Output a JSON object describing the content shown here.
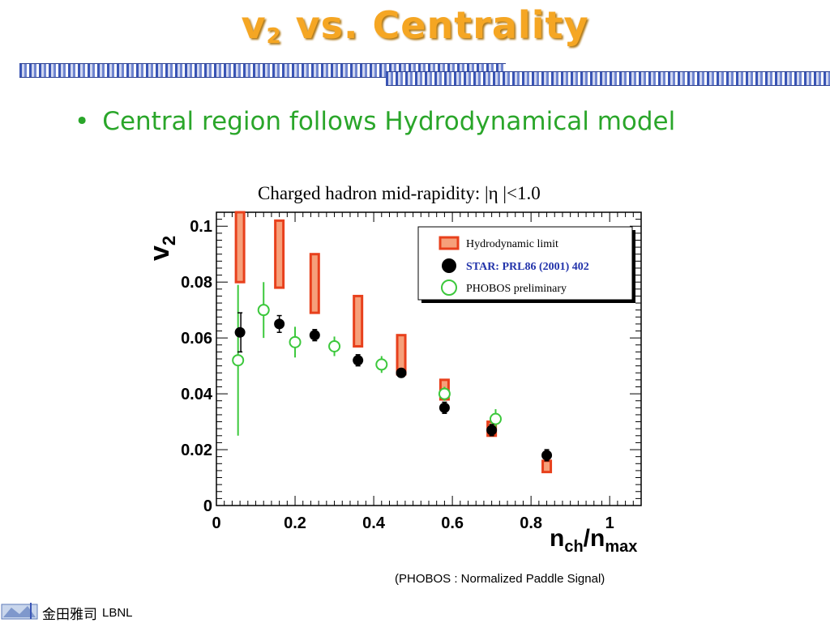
{
  "slide": {
    "title_main": "v",
    "title_sub": "2",
    "title_rest": " vs. Centrality",
    "bullet_mark": "•",
    "bullet_text": "Central region follows Hydrodynamical model",
    "caption": "(PHOBOS : Normalized Paddle Signal)",
    "footer_chinese": "金田雅司",
    "footer_lbnl": "LBNL",
    "colors": {
      "title": "#f5a623",
      "bullet": "#2aa62a",
      "hydro_edge": "#e8401c",
      "hydro_fill": "#f6a07a",
      "star": "#000000",
      "phobos": "#3cc83c",
      "legend_star_text": "#2233aa"
    }
  },
  "chart_data": {
    "type": "scatter",
    "title": "Charged hadron   mid-rapidity: |η |<1.0",
    "ylabel_main": "v",
    "ylabel_sub": "2",
    "xlabel_main": "n",
    "xlabel_sub1": "ch",
    "xlabel_mid": "/n",
    "xlabel_sub2": "max",
    "xlim": [
      0,
      1.08
    ],
    "ylim": [
      0,
      0.105
    ],
    "x_ticks": [
      {
        "value": 0,
        "label": "0"
      },
      {
        "value": 0.2,
        "label": "0.2"
      },
      {
        "value": 0.4,
        "label": "0.4"
      },
      {
        "value": 0.6,
        "label": "0.6"
      },
      {
        "value": 0.8,
        "label": "0.8"
      },
      {
        "value": 1.0,
        "label": "1"
      }
    ],
    "y_ticks": [
      {
        "value": 0,
        "label": "0"
      },
      {
        "value": 0.02,
        "label": "0.02"
      },
      {
        "value": 0.04,
        "label": "0.04"
      },
      {
        "value": 0.06,
        "label": "0.06"
      },
      {
        "value": 0.08,
        "label": "0.08"
      },
      {
        "value": 0.1,
        "label": "0.1"
      }
    ],
    "legend": {
      "placement": "top-right",
      "entries": [
        {
          "label": "Hydrodynamic limit",
          "marker": "box"
        },
        {
          "label": "STAR: PRL86 (2001) 402",
          "marker": "filled-circle"
        },
        {
          "label": "PHOBOS preliminary",
          "marker": "open-circle"
        }
      ]
    },
    "series": [
      {
        "name": "Hydrodynamic limit",
        "marker": "box",
        "points": [
          {
            "x": 0.06,
            "low": 0.08,
            "high": 0.105
          },
          {
            "x": 0.16,
            "low": 0.078,
            "high": 0.102
          },
          {
            "x": 0.25,
            "low": 0.069,
            "high": 0.09
          },
          {
            "x": 0.36,
            "low": 0.057,
            "high": 0.075
          },
          {
            "x": 0.47,
            "low": 0.047,
            "high": 0.061
          },
          {
            "x": 0.58,
            "low": 0.038,
            "high": 0.045
          },
          {
            "x": 0.7,
            "low": 0.025,
            "high": 0.03
          },
          {
            "x": 0.84,
            "low": 0.012,
            "high": 0.016
          }
        ]
      },
      {
        "name": "STAR: PRL86 (2001) 402",
        "marker": "filled-circle",
        "points": [
          {
            "x": 0.06,
            "y": 0.062,
            "err": 0.0
          },
          {
            "x": 0.16,
            "y": 0.065,
            "err": 0.003
          },
          {
            "x": 0.25,
            "y": 0.061,
            "err": 0.002
          },
          {
            "x": 0.36,
            "y": 0.052,
            "err": 0.002
          },
          {
            "x": 0.47,
            "y": 0.0475,
            "err": 0.0015
          },
          {
            "x": 0.58,
            "y": 0.035,
            "err": 0.002
          },
          {
            "x": 0.7,
            "y": 0.027,
            "err": 0.002
          },
          {
            "x": 0.84,
            "y": 0.018,
            "err": 0.002
          }
        ],
        "side_bar": {
          "x": 0.06,
          "low": 0.055,
          "high": 0.069
        }
      },
      {
        "name": "PHOBOS preliminary",
        "marker": "open-circle",
        "points": [
          {
            "x": 0.055,
            "y": 0.052,
            "err": 0.027
          },
          {
            "x": 0.12,
            "y": 0.07,
            "err": 0.01
          },
          {
            "x": 0.2,
            "y": 0.0585,
            "err": 0.0055
          },
          {
            "x": 0.3,
            "y": 0.057,
            "err": 0.0035
          },
          {
            "x": 0.42,
            "y": 0.0505,
            "err": 0.003
          },
          {
            "x": 0.58,
            "y": 0.04,
            "err": 0.0025
          },
          {
            "x": 0.71,
            "y": 0.031,
            "err": 0.0035
          }
        ]
      }
    ]
  }
}
